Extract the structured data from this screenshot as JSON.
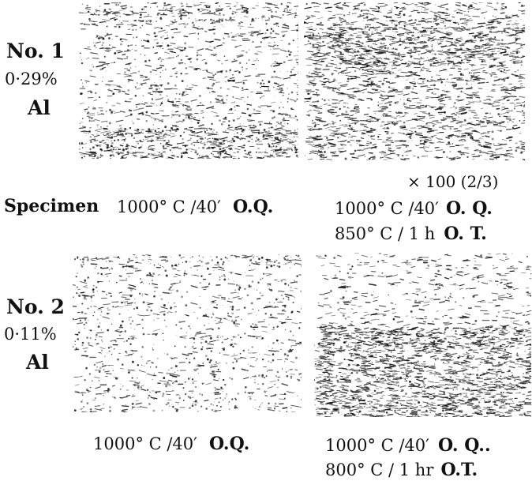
{
  "specimens": [
    {
      "number": "No. 1",
      "composition": "0·29%",
      "element": "Al",
      "left_caption": {
        "temp": "1000° C /40′",
        "quench": "O.Q."
      },
      "right_caption": {
        "line1_temp": "1000° C /40′",
        "line1_quench": "O. Q.",
        "line2_temp": "850° C / 1 h",
        "line2_treat": "O. T."
      }
    },
    {
      "number": "No. 2",
      "composition": "0·11%",
      "element": "Al",
      "left_caption": {
        "temp": "1000° C /40′",
        "quench": "O.Q."
      },
      "right_caption": {
        "line1_temp": "1000° C /40′",
        "line1_quench": "O. Q..",
        "line2_temp": "800° C / 1 hr",
        "line2_treat": "O.T."
      }
    }
  ],
  "magnification": "× 100 (2/3)",
  "specimen_label": "Specimen",
  "micrographs": [
    {
      "texture": "mixed-coarse"
    },
    {
      "texture": "dense-banded"
    },
    {
      "texture": "sparse-fine"
    },
    {
      "texture": "banded-lower-dense"
    }
  ],
  "colors": {
    "ink": "#111111",
    "paper": "#ffffff"
  }
}
